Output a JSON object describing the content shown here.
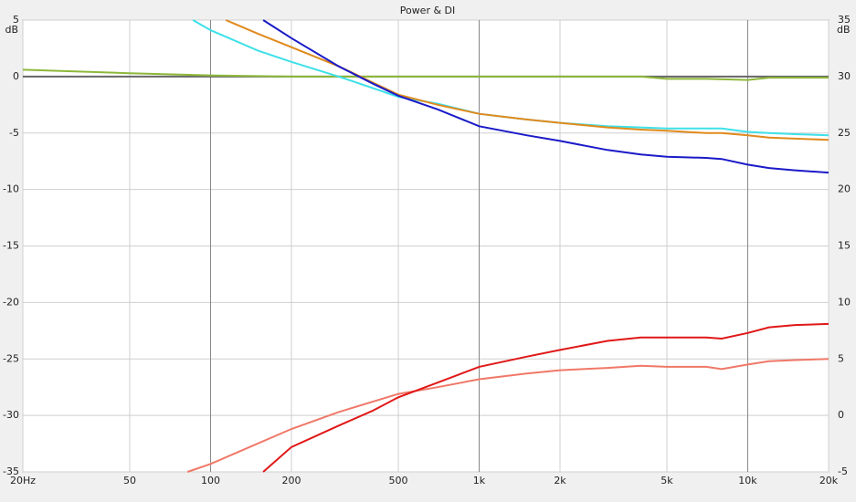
{
  "chart_data": {
    "type": "line",
    "title": "Power & DI",
    "y_label": "dB",
    "y2_label": "dB",
    "xscale": "log",
    "grid": true,
    "xlim": [
      20,
      20000
    ],
    "xticks": [
      {
        "value": 20,
        "label": "20Hz"
      },
      50,
      100,
      200,
      500,
      {
        "value": 1000,
        "label": "1k"
      },
      {
        "value": 2000,
        "label": "2k"
      },
      {
        "value": 5000,
        "label": "5k"
      },
      {
        "value": 10000,
        "label": "10k"
      },
      {
        "value": 20000,
        "label": "20k"
      }
    ],
    "ylim": [
      -35,
      5
    ],
    "yticks": [
      5,
      0,
      -5,
      -10,
      -15,
      -20,
      -25,
      -30,
      -35
    ],
    "y2lim": [
      -5,
      35
    ],
    "y2ticks": [
      35,
      30,
      25,
      20,
      15,
      10,
      5,
      0,
      -5
    ],
    "series": [
      {
        "color": "#666666",
        "x": [
          20,
          20000
        ],
        "values": [
          0,
          0
        ]
      },
      {
        "color": "#8db83a",
        "x": [
          20,
          50,
          100,
          200,
          500,
          1000,
          2000,
          4000,
          5000,
          7000,
          10000,
          12000,
          20000
        ],
        "values": [
          0.6,
          0.3,
          0.1,
          0,
          0,
          0,
          0,
          0,
          -0.2,
          -0.2,
          -0.3,
          -0.1,
          -0.1
        ]
      },
      {
        "color": "#3ee0e8",
        "x": [
          86,
          100,
          150,
          200,
          300,
          400,
          500,
          700,
          1000,
          1500,
          2000,
          3000,
          4000,
          5000,
          7000,
          8000,
          10000,
          12000,
          15000,
          20000
        ],
        "values": [
          5,
          4.1,
          2.3,
          1.3,
          0,
          -1,
          -1.8,
          -2.4,
          -3.3,
          -3.8,
          -4.1,
          -4.4,
          -4.5,
          -4.6,
          -4.6,
          -4.6,
          -4.9,
          -5.0,
          -5.1,
          -5.2
        ]
      },
      {
        "color": "#e08a1e",
        "x": [
          114,
          150,
          200,
          300,
          400,
          500,
          700,
          1000,
          1500,
          2000,
          3000,
          4000,
          5000,
          7000,
          8000,
          10000,
          12000,
          15000,
          20000
        ],
        "values": [
          5,
          3.8,
          2.6,
          0.9,
          -0.5,
          -1.6,
          -2.5,
          -3.3,
          -3.8,
          -4.1,
          -4.5,
          -4.7,
          -4.8,
          -5.0,
          -5.0,
          -5.2,
          -5.4,
          -5.5,
          -5.6
        ]
      },
      {
        "color": "#1a1ac8",
        "x": [
          157,
          200,
          300,
          400,
          500,
          700,
          1000,
          1500,
          2000,
          3000,
          4000,
          5000,
          7000,
          8000,
          10000,
          12000,
          15000,
          20000
        ],
        "values": [
          5,
          3.4,
          0.9,
          -0.6,
          -1.7,
          -2.9,
          -4.4,
          -5.2,
          -5.7,
          -6.5,
          -6.9,
          -7.1,
          -7.2,
          -7.3,
          -7.8,
          -8.1,
          -8.3,
          -8.5
        ]
      },
      {
        "color": "#f07868",
        "axis": "y2",
        "x": [
          82,
          100,
          200,
          300,
          500,
          700,
          1000,
          1500,
          2000,
          3000,
          4000,
          5000,
          7000,
          8000,
          10000,
          12000,
          15000,
          20000
        ],
        "values": [
          -5,
          -4.3,
          -1.2,
          0.3,
          1.9,
          2.5,
          3.2,
          3.7,
          4.0,
          4.2,
          4.4,
          4.3,
          4.3,
          4.1,
          4.5,
          4.8,
          4.9,
          5.0
        ]
      },
      {
        "color": "#e01818",
        "axis": "y2",
        "x": [
          157,
          200,
          300,
          400,
          500,
          700,
          1000,
          1500,
          2000,
          3000,
          4000,
          5000,
          7000,
          8000,
          10000,
          12000,
          15000,
          20000
        ],
        "values": [
          -5,
          -2.8,
          -0.9,
          0.4,
          1.6,
          2.9,
          4.3,
          5.2,
          5.8,
          6.6,
          6.9,
          6.9,
          6.9,
          6.8,
          7.3,
          7.8,
          8.0,
          8.1
        ]
      }
    ]
  }
}
